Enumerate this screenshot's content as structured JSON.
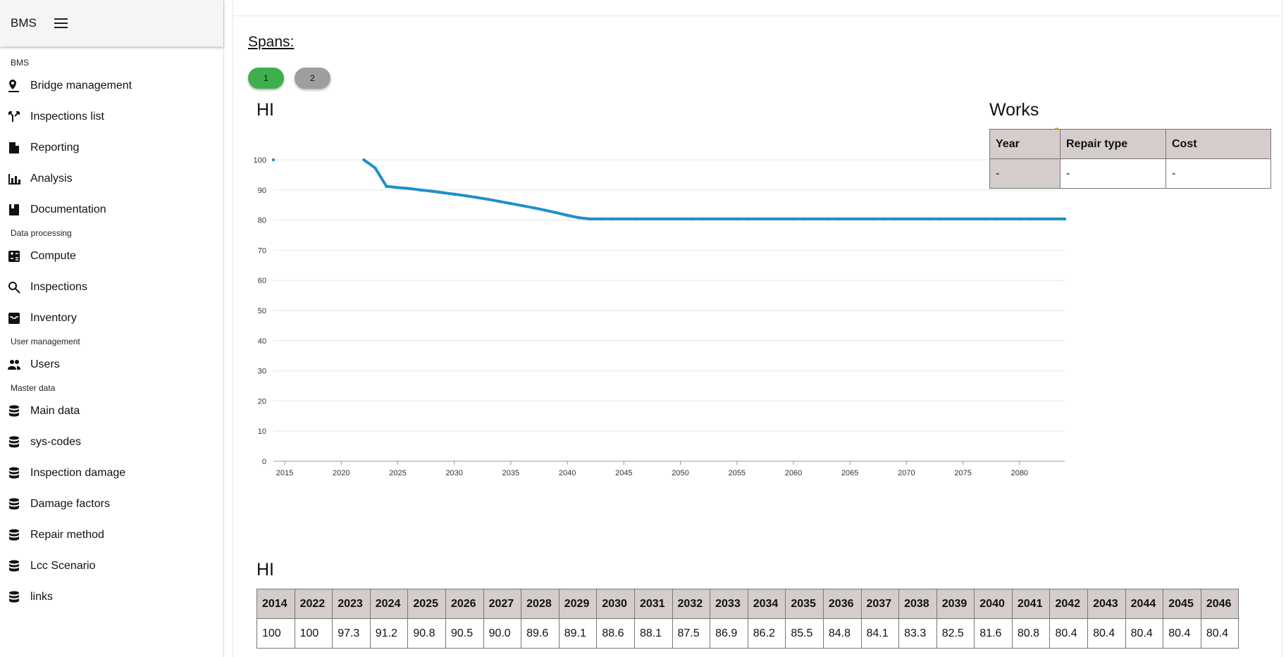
{
  "app": {
    "title": "BMS"
  },
  "sidebar": {
    "sections": [
      {
        "label": "BMS",
        "items": [
          {
            "label": "Bridge management",
            "icon": "map-pin-icon"
          },
          {
            "label": "Inspections list",
            "icon": "fork-arrows-icon"
          },
          {
            "label": "Reporting",
            "icon": "document-icon"
          },
          {
            "label": "Analysis",
            "icon": "bar-chart-icon"
          },
          {
            "label": "Documentation",
            "icon": "book-icon"
          }
        ]
      },
      {
        "label": "Data processing",
        "items": [
          {
            "label": "Compute",
            "icon": "calculator-icon"
          },
          {
            "label": "Inspections",
            "icon": "search-icon"
          },
          {
            "label": "Inventory",
            "icon": "inbox-icon"
          }
        ]
      },
      {
        "label": "User management",
        "items": [
          {
            "label": "Users",
            "icon": "users-icon"
          }
        ]
      },
      {
        "label": "Master data",
        "items": [
          {
            "label": "Main data",
            "icon": "database-icon"
          },
          {
            "label": "sys-codes",
            "icon": "database-icon"
          },
          {
            "label": "Inspection damage",
            "icon": "database-icon"
          },
          {
            "label": "Damage factors",
            "icon": "database-icon"
          },
          {
            "label": "Repair method",
            "icon": "database-icon"
          },
          {
            "label": "Lcc Scenario",
            "icon": "database-icon"
          },
          {
            "label": "links",
            "icon": "database-icon"
          }
        ]
      }
    ]
  },
  "main": {
    "spans_title": "Spans:",
    "span_buttons": [
      "1",
      "2"
    ],
    "active_span": "1",
    "colors": {
      "active": "#3fae4d",
      "inactive": "#9e9e9e",
      "series": "#1f8fc8",
      "header_bg": "#d5cccc"
    },
    "chart_title": "HI",
    "works": {
      "title": "Works",
      "headers": [
        "Year",
        "Repair type",
        "Cost"
      ],
      "rows": [
        [
          "-",
          "-",
          "-"
        ]
      ]
    },
    "hi_table": {
      "title": "HI",
      "years": [
        "2014",
        "2022",
        "2023",
        "2024",
        "2025",
        "2026",
        "2027",
        "2028",
        "2029",
        "2030",
        "2031",
        "2032",
        "2033",
        "2034",
        "2035",
        "2036",
        "2037",
        "2038",
        "2039",
        "2040",
        "2041",
        "2042",
        "2043",
        "2044",
        "2045",
        "2046"
      ],
      "values": [
        "100",
        "100",
        "97.3",
        "91.2",
        "90.8",
        "90.5",
        "90.0",
        "89.6",
        "89.1",
        "88.6",
        "88.1",
        "87.5",
        "86.9",
        "86.2",
        "85.5",
        "84.8",
        "84.1",
        "83.3",
        "82.5",
        "81.6",
        "80.8",
        "80.4",
        "80.4",
        "80.4",
        "80.4",
        "80.4"
      ]
    }
  },
  "chart_data": {
    "type": "line",
    "title": "HI",
    "xlabel": "",
    "ylabel": "",
    "xlim": [
      2014,
      2084
    ],
    "ylim": [
      0,
      100
    ],
    "x_ticks": [
      2015,
      2020,
      2025,
      2030,
      2035,
      2040,
      2045,
      2050,
      2055,
      2060,
      2065,
      2070,
      2075,
      2080
    ],
    "y_ticks": [
      0,
      10,
      20,
      30,
      40,
      50,
      60,
      70,
      80,
      90,
      100
    ],
    "grid": true,
    "series": [
      {
        "x": [
          2014,
          2022,
          2023,
          2024,
          2025,
          2026,
          2027,
          2028,
          2029,
          2030,
          2031,
          2032,
          2033,
          2034,
          2035,
          2036,
          2037,
          2038,
          2039,
          2040,
          2041,
          2042,
          2043,
          2044,
          2045,
          2046,
          2047,
          2048,
          2049,
          2050,
          2051,
          2052,
          2053,
          2054,
          2055,
          2056,
          2057,
          2058,
          2059,
          2060,
          2061,
          2062,
          2063,
          2064,
          2065,
          2066,
          2067,
          2068,
          2069,
          2070,
          2071,
          2072,
          2073,
          2074,
          2075,
          2076,
          2077,
          2078,
          2079,
          2080,
          2081,
          2082,
          2083,
          2084
        ],
        "y": [
          100,
          100,
          97.3,
          91.2,
          90.8,
          90.5,
          90.0,
          89.6,
          89.1,
          88.6,
          88.1,
          87.5,
          86.9,
          86.2,
          85.5,
          84.8,
          84.1,
          83.3,
          82.5,
          81.6,
          80.8,
          80.4,
          80.4,
          80.4,
          80.4,
          80.4,
          80.4,
          80.4,
          80.4,
          80.4,
          80.4,
          80.4,
          80.4,
          80.4,
          80.4,
          80.4,
          80.4,
          80.4,
          80.4,
          80.4,
          80.4,
          80.4,
          80.4,
          80.4,
          80.4,
          80.4,
          80.4,
          80.4,
          80.4,
          80.4,
          80.4,
          80.4,
          80.4,
          80.4,
          80.4,
          80.4,
          80.4,
          80.4,
          80.4,
          80.4,
          80.4,
          80.4,
          80.4,
          80.4
        ]
      }
    ]
  }
}
